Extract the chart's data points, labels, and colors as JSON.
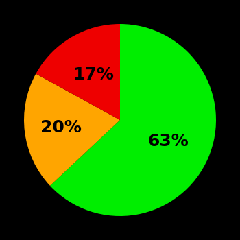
{
  "slices": [
    63,
    20,
    17
  ],
  "colors": [
    "#00ee00",
    "#ffa500",
    "#ee0000"
  ],
  "labels": [
    "63%",
    "20%",
    "17%"
  ],
  "label_radii": [
    0.55,
    0.62,
    0.55
  ],
  "background_color": "#000000",
  "text_color": "#000000",
  "startangle": 90,
  "counterclock": false,
  "fontsize": 18,
  "figsize": [
    3.5,
    3.5
  ],
  "dpi": 100
}
